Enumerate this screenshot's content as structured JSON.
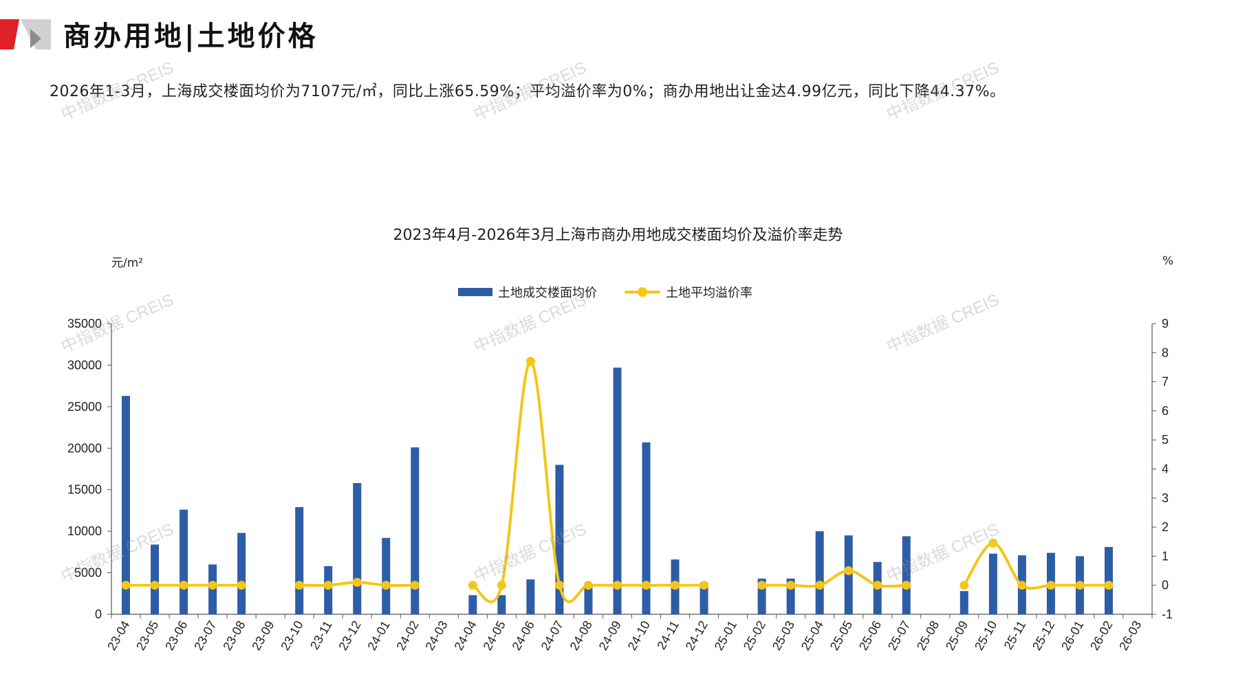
{
  "header": {
    "title": "商办用地|土地价格",
    "summary": "2026年1-3月，上海成交楼面均价为7107元/㎡，同比上涨65.59%；平均溢价率为0%；商办用地出让金达4.99亿元，同比下降44.37%。"
  },
  "watermark": "中指数据 CREIS",
  "colors": {
    "bar": "#2E5DA8",
    "line": "#F5C518",
    "logo_red": "#E02027",
    "logo_gray": "#BFBFBF"
  },
  "chart_data": {
    "type": "bar",
    "title": "2023年4月-2026年3月上海市商办用地成交楼面均价及溢价率走势",
    "y_unit": "元/m²",
    "y2_unit": "%",
    "ylim": [
      0,
      35000
    ],
    "y2lim": [
      -1,
      9
    ],
    "y_ticks": [
      "0",
      "5000",
      "10000",
      "15000",
      "20000",
      "25000",
      "30000",
      "35000"
    ],
    "y2_ticks": [
      "-1",
      "0",
      "1",
      "2",
      "3",
      "4",
      "5",
      "6",
      "7",
      "8",
      "9"
    ],
    "legend": [
      "土地成交楼面均价",
      "土地平均溢价率"
    ],
    "legend_position": "top",
    "categories": [
      "23-04",
      "23-05",
      "23-06",
      "23-07",
      "23-08",
      "23-09",
      "23-10",
      "23-11",
      "23-12",
      "24-01",
      "24-02",
      "24-03",
      "24-04",
      "24-05",
      "24-06",
      "24-07",
      "24-08",
      "24-09",
      "24-10",
      "24-11",
      "24-12",
      "25-01",
      "25-02",
      "25-03",
      "25-04",
      "25-05",
      "25-06",
      "25-07",
      "25-08",
      "25-09",
      "25-10",
      "25-11",
      "25-12",
      "26-01",
      "26-02",
      "26-03"
    ],
    "series": [
      {
        "name": "土地成交楼面均价",
        "type": "bar",
        "axis": "left",
        "values": [
          26300,
          8400,
          12600,
          6000,
          9800,
          null,
          12900,
          5800,
          15800,
          9200,
          20100,
          null,
          2300,
          2300,
          4200,
          18000,
          3600,
          29700,
          20700,
          6600,
          3800,
          null,
          4300,
          4300,
          10000,
          9500,
          6300,
          9400,
          null,
          2800,
          7300,
          7100,
          7400,
          7000,
          8100,
          null
        ]
      },
      {
        "name": "土地平均溢价率",
        "type": "line",
        "axis": "right",
        "values": [
          0,
          0,
          0,
          0,
          0,
          null,
          0,
          0,
          0.1,
          0,
          0,
          null,
          0,
          0,
          7.7,
          0,
          0,
          0,
          0,
          0,
          0,
          null,
          0,
          0,
          0,
          0.5,
          0,
          0,
          null,
          0,
          1.45,
          0,
          0,
          0,
          0,
          null
        ]
      }
    ]
  }
}
